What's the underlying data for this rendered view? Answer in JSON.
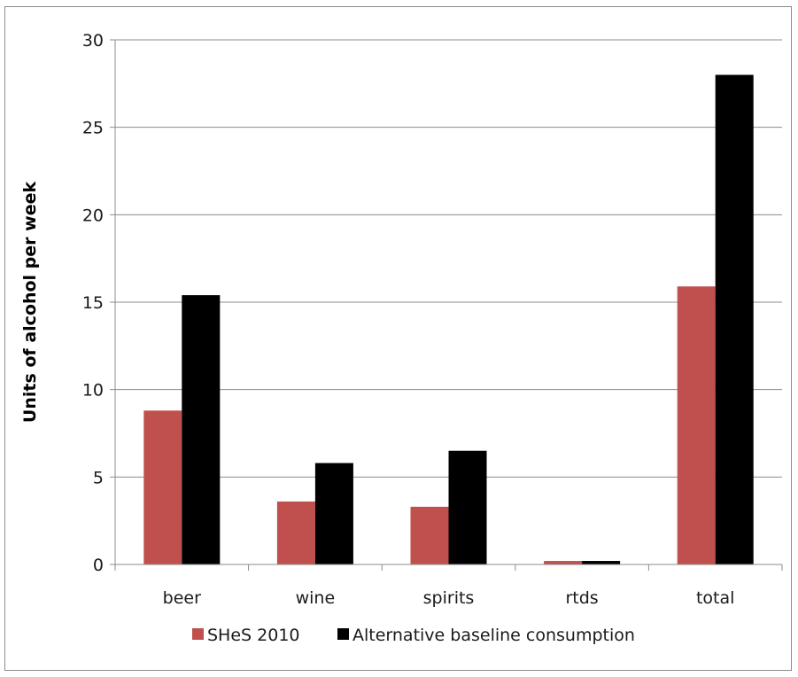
{
  "chart_data": {
    "type": "bar",
    "title": "",
    "xlabel": "",
    "ylabel": "Units of alcohol per week",
    "ylim": [
      0,
      30
    ],
    "yticks": [
      0,
      5,
      10,
      15,
      20,
      25,
      30
    ],
    "grid": true,
    "legend_position": "bottom",
    "categories": [
      "beer",
      "wine",
      "spirits",
      "rtds",
      "total"
    ],
    "series": [
      {
        "name": "SHeS 2010",
        "color": "#c0504d",
        "values": [
          8.8,
          3.6,
          3.3,
          0.2,
          15.9
        ]
      },
      {
        "name": "Alternative baseline consumption",
        "color": "#000000",
        "values": [
          15.4,
          5.8,
          6.5,
          0.2,
          28.0
        ]
      }
    ]
  }
}
